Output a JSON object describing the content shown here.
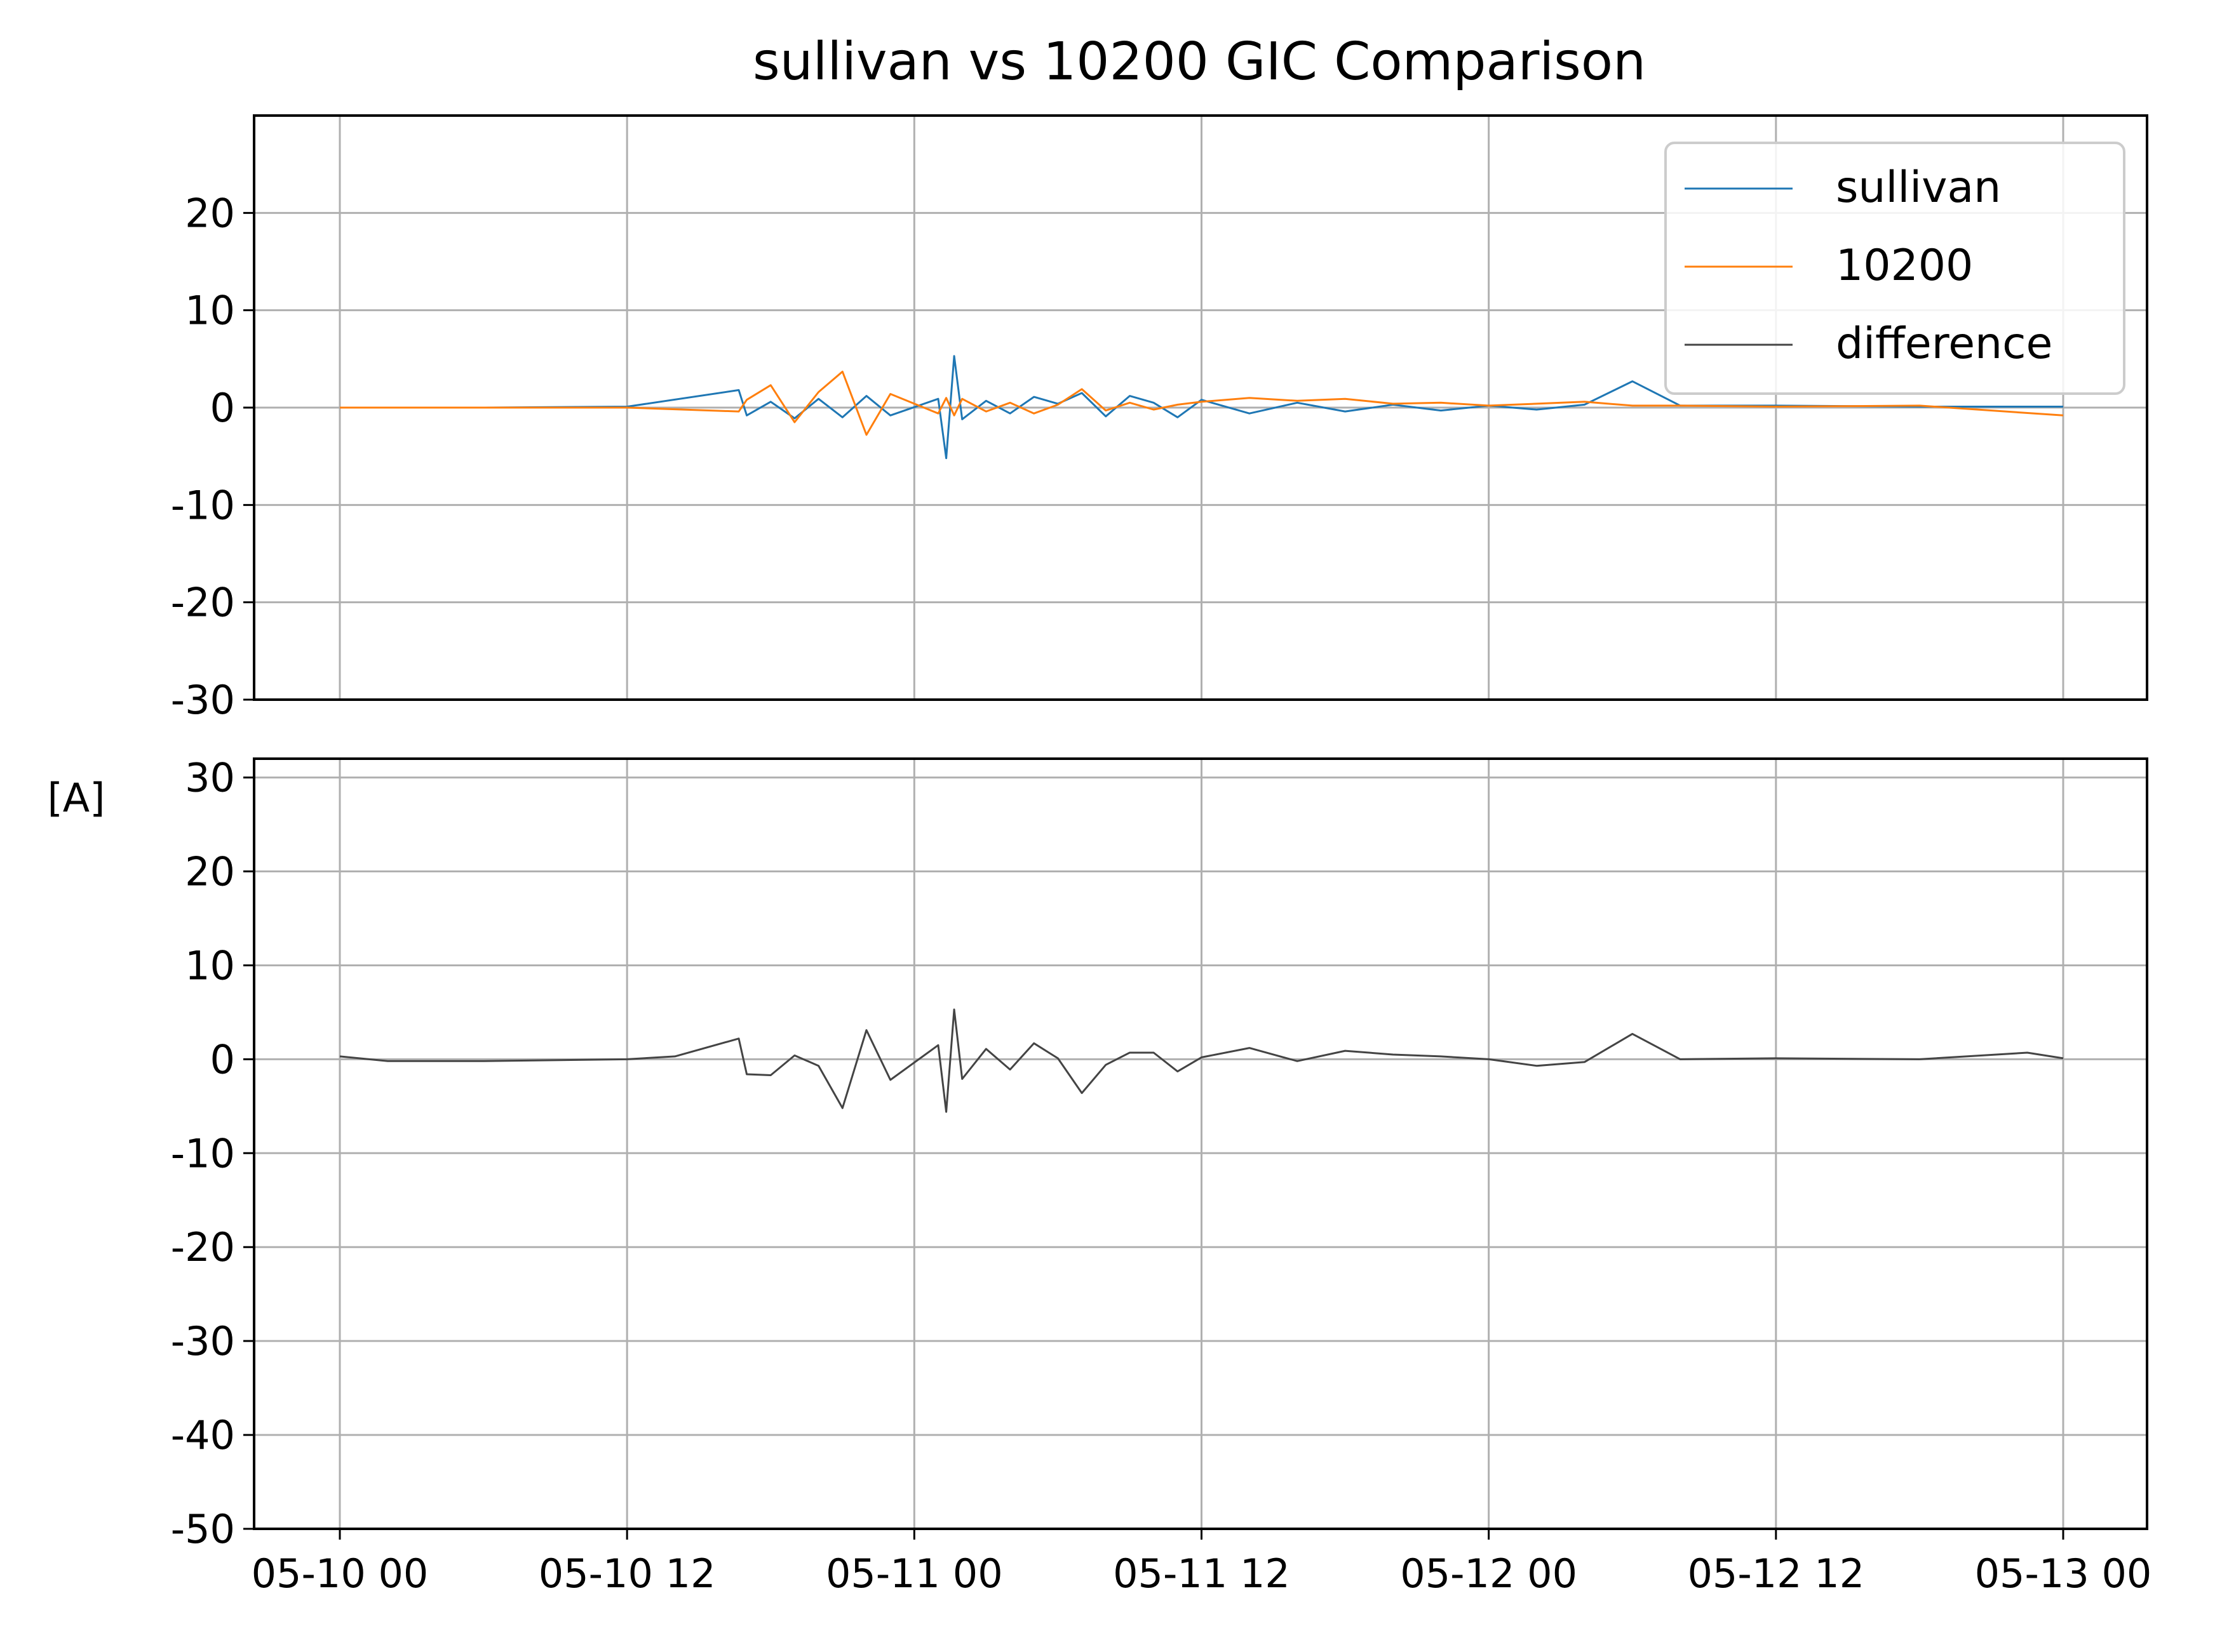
{
  "chart_data": {
    "type": "line",
    "title": "sullivan vs 10200 GIC Comparison",
    "ylabel": "[A]",
    "xlabel": "",
    "x_ticks": [
      "05-10 00",
      "05-10 12",
      "05-11 00",
      "05-11 12",
      "05-12 00",
      "05-12 12",
      "05-13 00"
    ],
    "x_range": [
      "2024-05-10 00:00",
      "2024-05-13 00:00"
    ],
    "grid": true,
    "legend_position": "top-right",
    "panels": [
      {
        "name": "comparison",
        "ylim": [
          -30,
          30
        ],
        "y_ticks": [
          "20",
          "10",
          "0",
          "-10",
          "-20",
          "-30"
        ],
        "series": [
          {
            "name": "sullivan",
            "color": "#1f77b4",
            "x": [
              "05-10 00:00",
              "05-10 06:00",
              "05-10 12:00",
              "05-10 16:40",
              "05-10 17:00",
              "05-10 18:00",
              "05-10 19:00",
              "05-10 20:00",
              "05-10 21:00",
              "05-10 22:00",
              "05-10 23:00",
              "05-11 01:00",
              "05-11 01:20",
              "05-11 01:40",
              "05-11 02:00",
              "05-11 03:00",
              "05-11 04:00",
              "05-11 05:00",
              "05-11 06:00",
              "05-11 07:00",
              "05-11 08:00",
              "05-11 09:00",
              "05-11 10:00",
              "05-11 11:00",
              "05-11 12:00",
              "05-11 14:00",
              "05-11 16:00",
              "05-11 18:00",
              "05-11 20:00",
              "05-11 22:00",
              "05-12 00:00",
              "05-12 02:00",
              "05-12 04:00",
              "05-12 06:00",
              "05-12 08:00",
              "05-12 12:00",
              "05-12 18:00",
              "05-13 00:00"
            ],
            "y": [
              0.0,
              0.0,
              0.1,
              1.8,
              -0.8,
              0.6,
              -1.1,
              0.9,
              -1.0,
              1.2,
              -0.8,
              0.9,
              -5.2,
              5.3,
              -1.2,
              0.7,
              -0.6,
              1.1,
              0.4,
              1.5,
              -0.9,
              1.2,
              0.5,
              -1.0,
              0.8,
              -0.6,
              0.5,
              -0.4,
              0.3,
              -0.3,
              0.2,
              -0.2,
              0.3,
              2.7,
              0.2,
              0.2,
              0.1,
              0.1
            ]
          },
          {
            "name": "10200",
            "color": "#ff7f0e",
            "x": [
              "05-10 00:00",
              "05-10 06:00",
              "05-10 12:00",
              "05-10 16:40",
              "05-10 17:00",
              "05-10 18:00",
              "05-10 19:00",
              "05-10 20:00",
              "05-10 21:00",
              "05-10 22:00",
              "05-10 23:00",
              "05-11 01:00",
              "05-11 01:20",
              "05-11 01:40",
              "05-11 02:00",
              "05-11 03:00",
              "05-11 04:00",
              "05-11 05:00",
              "05-11 06:00",
              "05-11 07:00",
              "05-11 08:00",
              "05-11 09:00",
              "05-11 10:00",
              "05-11 11:00",
              "05-11 12:00",
              "05-11 14:00",
              "05-11 16:00",
              "05-11 18:00",
              "05-11 20:00",
              "05-11 22:00",
              "05-12 00:00",
              "05-12 02:00",
              "05-12 04:00",
              "05-12 06:00",
              "05-12 08:00",
              "05-12 12:00",
              "05-12 18:00",
              "05-13 00:00"
            ],
            "y": [
              0.0,
              0.0,
              0.0,
              -0.4,
              0.8,
              2.3,
              -1.5,
              1.6,
              3.7,
              -2.8,
              1.4,
              -0.6,
              1.0,
              -0.8,
              0.9,
              -0.4,
              0.5,
              -0.6,
              0.3,
              1.9,
              -0.3,
              0.5,
              -0.2,
              0.3,
              0.6,
              1.0,
              0.7,
              0.9,
              0.4,
              0.5,
              0.2,
              0.4,
              0.6,
              0.2,
              0.2,
              0.1,
              0.2,
              -0.8
            ]
          }
        ]
      },
      {
        "name": "difference",
        "ylim": [
          -50,
          32
        ],
        "y_ticks": [
          "30",
          "20",
          "10",
          "0",
          "-10",
          "-20",
          "-30",
          "-40",
          "-50"
        ],
        "series": [
          {
            "name": "difference",
            "color": "#444444",
            "x": [
              "05-10 00:00",
              "05-10 02:00",
              "05-10 06:00",
              "05-10 12:00",
              "05-10 14:00",
              "05-10 16:40",
              "05-10 17:00",
              "05-10 18:00",
              "05-10 19:00",
              "05-10 20:00",
              "05-10 21:00",
              "05-10 22:00",
              "05-10 23:00",
              "05-11 01:00",
              "05-11 01:20",
              "05-11 01:40",
              "05-11 02:00",
              "05-11 03:00",
              "05-11 04:00",
              "05-11 05:00",
              "05-11 06:00",
              "05-11 07:00",
              "05-11 08:00",
              "05-11 09:00",
              "05-11 10:00",
              "05-11 11:00",
              "05-11 12:00",
              "05-11 14:00",
              "05-11 16:00",
              "05-11 18:00",
              "05-11 20:00",
              "05-11 22:00",
              "05-12 00:00",
              "05-12 02:00",
              "05-12 04:00",
              "05-12 06:00",
              "05-12 08:00",
              "05-12 12:00",
              "05-12 18:00",
              "05-12 22:30",
              "05-13 00:00"
            ],
            "y": [
              0.3,
              -0.2,
              -0.2,
              0.0,
              0.3,
              2.2,
              -1.6,
              -1.7,
              0.4,
              -0.7,
              -5.2,
              3.1,
              -2.2,
              1.5,
              -5.6,
              5.3,
              -2.1,
              1.1,
              -1.1,
              1.7,
              0.1,
              -3.6,
              -0.6,
              0.7,
              0.7,
              -1.3,
              0.2,
              1.2,
              -0.2,
              0.9,
              0.5,
              0.3,
              0.0,
              -0.7,
              -0.3,
              2.7,
              0.0,
              0.1,
              0.0,
              0.7,
              0.1
            ]
          }
        ]
      }
    ]
  }
}
